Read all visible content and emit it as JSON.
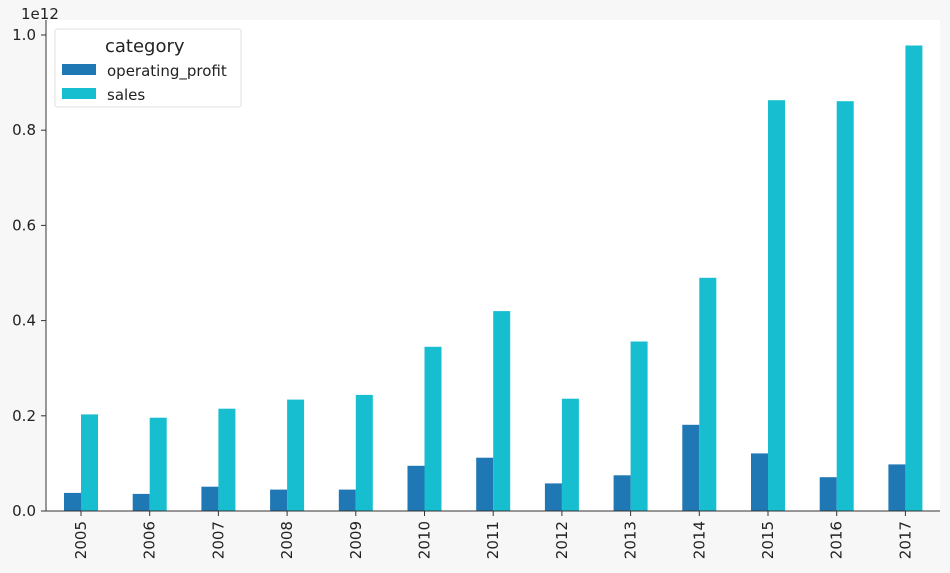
{
  "chart_data": {
    "type": "bar",
    "categories": [
      "2005",
      "2006",
      "2007",
      "2008",
      "2009",
      "2010",
      "2011",
      "2012",
      "2013",
      "2014",
      "2015",
      "2016",
      "2017"
    ],
    "series": [
      {
        "name": "operating_profit",
        "color": "#1f77b4",
        "values": [
          38000000000.0,
          36000000000.0,
          51000000000.0,
          45000000000.0,
          45000000000.0,
          95000000000.0,
          112000000000.0,
          58000000000.0,
          75000000000.0,
          181000000000.0,
          121000000000.0,
          71000000000.0,
          98000000000.0
        ]
      },
      {
        "name": "sales",
        "color": "#17becf",
        "values": [
          203000000000.0,
          196000000000.0,
          215000000000.0,
          234000000000.0,
          244000000000.0,
          345000000000.0,
          420000000000.0,
          236000000000.0,
          356000000000.0,
          490000000000.0,
          863000000000.0,
          861000000000.0,
          978000000000.0
        ]
      }
    ],
    "ylim": [
      0,
      1000000000000.0
    ],
    "yticks": [
      0.0,
      0.2,
      0.4,
      0.6,
      0.8,
      1.0
    ],
    "ytick_labels": [
      "0.0",
      "0.2",
      "0.4",
      "0.6",
      "0.8",
      "1.0"
    ],
    "y_offset_label": "1e12",
    "legend": {
      "title": "category",
      "placement": "top-left"
    },
    "grid": false,
    "xtick_rotation": "vertical"
  }
}
